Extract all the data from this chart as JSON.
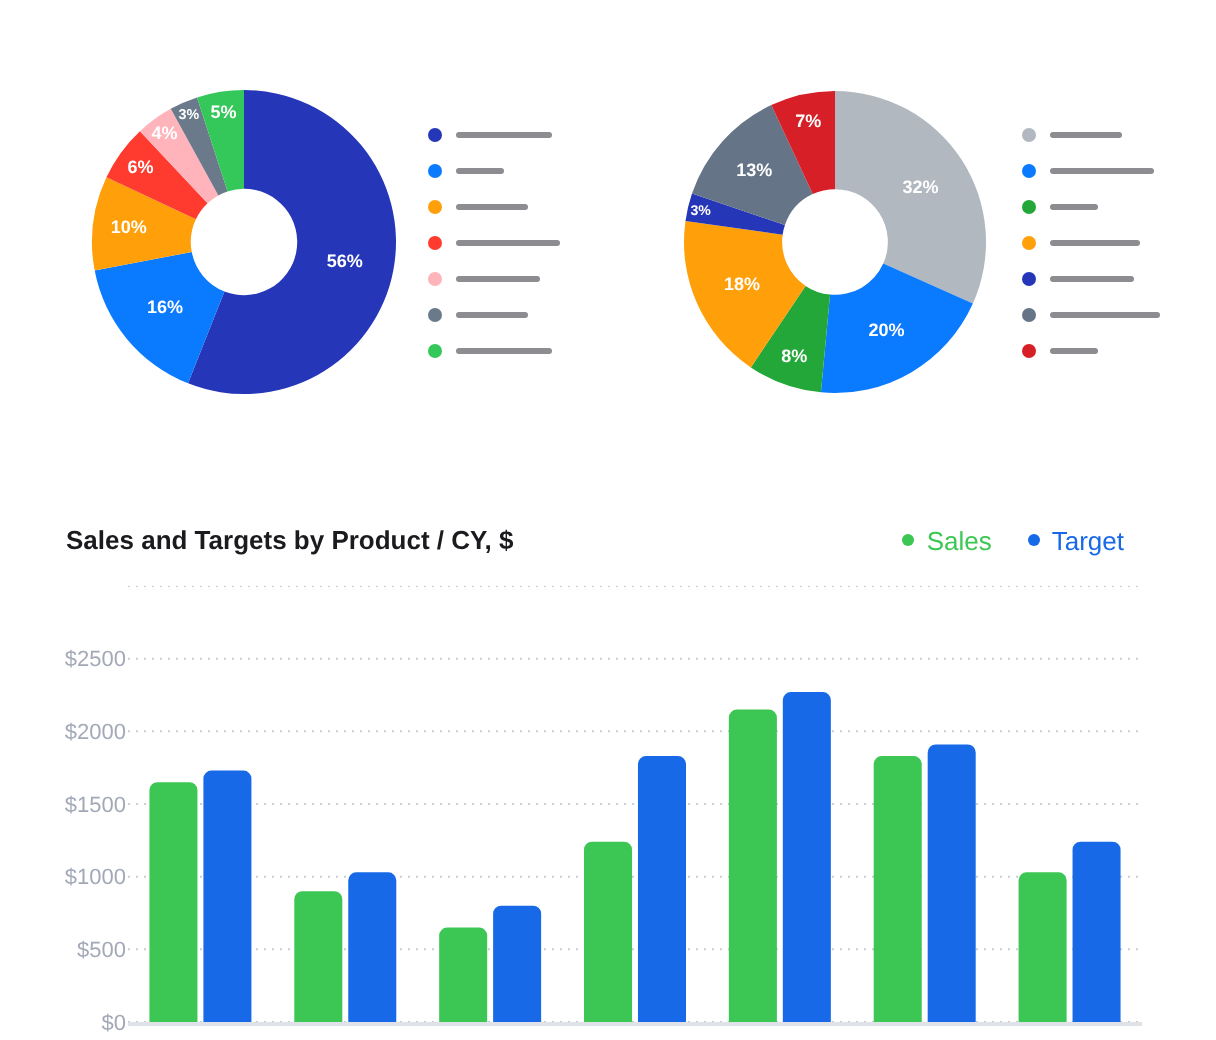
{
  "chart_data": [
    {
      "type": "donut",
      "categories": [
        null,
        null,
        null,
        null,
        null,
        null,
        null
      ],
      "values": [
        56,
        16,
        10,
        6,
        4,
        3,
        5
      ],
      "value_labels": [
        "56%",
        "16%",
        "10%",
        "6%",
        "4%",
        "3%",
        "5%"
      ],
      "colors": [
        "#2536b8",
        "#0a7aff",
        "#ff9f0a",
        "#ff3b30",
        "#ffb3ba",
        "#6b7a8a",
        "#34c759"
      ]
    },
    {
      "type": "donut",
      "categories": [
        null,
        null,
        null,
        null,
        null,
        null,
        null
      ],
      "values": [
        32,
        20,
        8,
        18,
        3,
        13,
        7
      ],
      "value_labels": [
        "32%",
        "20%",
        "8%",
        "18%",
        "3%",
        "13%",
        "7%"
      ],
      "colors": [
        "#b1b8bf",
        "#0a7aff",
        "#22a738",
        "#ff9f0a",
        "#2536b8",
        "#657587",
        "#d61f26"
      ]
    },
    {
      "type": "bar",
      "title": "Sales and Targets by Product / CY, $",
      "categories": [
        null,
        null,
        null,
        null,
        null,
        null,
        null
      ],
      "series": [
        {
          "name": "Sales",
          "color": "#3cc653",
          "values": [
            1650,
            900,
            650,
            1240,
            2150,
            1830,
            1030
          ]
        },
        {
          "name": "Target",
          "color": "#1769e8",
          "values": [
            1730,
            1030,
            800,
            1830,
            2270,
            1910,
            1240
          ]
        }
      ],
      "ylim": [
        0,
        3000
      ],
      "yticks": [
        {
          "value": 0,
          "label": "$0"
        },
        {
          "value": 500,
          "label": "$500"
        },
        {
          "value": 1000,
          "label": "$1000"
        },
        {
          "value": 1500,
          "label": "$1500"
        },
        {
          "value": 2000,
          "label": "$2000"
        },
        {
          "value": 2500,
          "label": "$2500"
        },
        {
          "value": 3000,
          "label": null
        }
      ],
      "grid": "y",
      "legend": "top right"
    }
  ]
}
